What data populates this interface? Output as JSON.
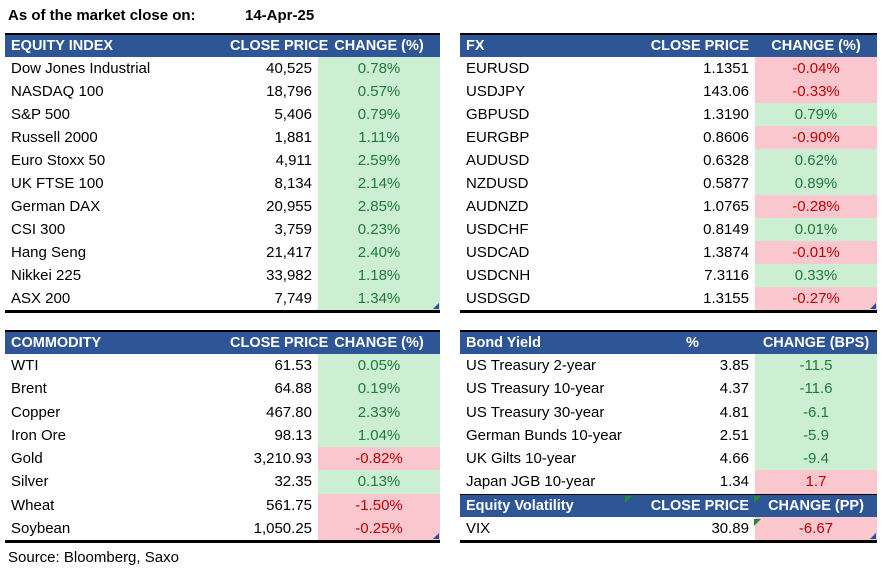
{
  "meta": {
    "as_of_label": "As of the market close on:",
    "date": "14-Apr-25",
    "source": "Source: Bloomberg, Saxo"
  },
  "colors": {
    "header_bg": "#2E5596",
    "header_text": "#FFFFFF",
    "positive_bg": "#CCEED2",
    "positive_text": "#1E7B3A",
    "negative_bg": "#FBC7CE",
    "negative_text": "#C00000",
    "corner_marker_blue": "#2A4B9B",
    "error_indicator_green": "#1E8E3E"
  },
  "tables": {
    "equity": {
      "title": "EQUITY INDEX",
      "col_price": "CLOSE PRICE",
      "col_change": "CHANGE (%)",
      "rows": [
        {
          "name": "Dow Jones Industrial",
          "price": "40,525",
          "change": "0.78%",
          "tone": "pos"
        },
        {
          "name": "NASDAQ 100",
          "price": "18,796",
          "change": "0.57%",
          "tone": "pos"
        },
        {
          "name": "S&P 500",
          "price": "5,406",
          "change": "0.79%",
          "tone": "pos"
        },
        {
          "name": "Russell 2000",
          "price": "1,881",
          "change": "1.11%",
          "tone": "pos"
        },
        {
          "name": "Euro Stoxx 50",
          "price": "4,911",
          "change": "2.59%",
          "tone": "pos"
        },
        {
          "name": "UK FTSE 100",
          "price": "8,134",
          "change": "2.14%",
          "tone": "pos"
        },
        {
          "name": "German DAX",
          "price": "20,955",
          "change": "2.85%",
          "tone": "pos"
        },
        {
          "name": "CSI 300",
          "price": "3,759",
          "change": "0.23%",
          "tone": "pos"
        },
        {
          "name": "Hang Seng",
          "price": "21,417",
          "change": "2.40%",
          "tone": "pos"
        },
        {
          "name": "Nikkei 225",
          "price": "33,982",
          "change": "1.18%",
          "tone": "pos"
        },
        {
          "name": "ASX 200",
          "price": "7,749",
          "change": "1.34%",
          "tone": "pos"
        }
      ]
    },
    "fx": {
      "title": "FX",
      "col_price": "CLOSE PRICE",
      "col_change": "CHANGE (%)",
      "rows": [
        {
          "name": "EURUSD",
          "price": "1.1351",
          "change": "-0.04%",
          "tone": "neg"
        },
        {
          "name": "USDJPY",
          "price": "143.06",
          "change": "-0.33%",
          "tone": "neg"
        },
        {
          "name": "GBPUSD",
          "price": "1.3190",
          "change": "0.79%",
          "tone": "pos"
        },
        {
          "name": "EURGBP",
          "price": "0.8606",
          "change": "-0.90%",
          "tone": "neg"
        },
        {
          "name": "AUDUSD",
          "price": "0.6328",
          "change": "0.62%",
          "tone": "pos"
        },
        {
          "name": "NZDUSD",
          "price": "0.5877",
          "change": "0.89%",
          "tone": "pos"
        },
        {
          "name": "AUDNZD",
          "price": "1.0765",
          "change": "-0.28%",
          "tone": "neg"
        },
        {
          "name": "USDCHF",
          "price": "0.8149",
          "change": "0.01%",
          "tone": "pos"
        },
        {
          "name": "USDCAD",
          "price": "1.3874",
          "change": "-0.01%",
          "tone": "neg"
        },
        {
          "name": "USDCNH",
          "price": "7.3116",
          "change": "0.33%",
          "tone": "pos"
        },
        {
          "name": "USDSGD",
          "price": "1.3155",
          "change": "-0.27%",
          "tone": "neg"
        }
      ]
    },
    "commodity": {
      "title": "COMMODITY",
      "col_price": "CLOSE PRICE",
      "col_change": "CHANGE (%)",
      "rows": [
        {
          "name": "WTI",
          "price": "61.53",
          "change": "0.05%",
          "tone": "pos"
        },
        {
          "name": "Brent",
          "price": "64.88",
          "change": "0.19%",
          "tone": "pos"
        },
        {
          "name": "Copper",
          "price": "467.80",
          "change": "2.33%",
          "tone": "pos"
        },
        {
          "name": "Iron Ore",
          "price": "98.13",
          "change": "1.04%",
          "tone": "pos"
        },
        {
          "name": "Gold",
          "price": "3,210.93",
          "change": "-0.82%",
          "tone": "neg"
        },
        {
          "name": "Silver",
          "price": "32.35",
          "change": "0.13%",
          "tone": "pos"
        },
        {
          "name": "Wheat",
          "price": "561.75",
          "change": "-1.50%",
          "tone": "neg"
        },
        {
          "name": "Soybean",
          "price": "1,050.25",
          "change": "-0.25%",
          "tone": "neg"
        }
      ]
    },
    "bond": {
      "title": "Bond Yield",
      "col_price": "%",
      "col_change": "CHANGE (BPS)",
      "rows": [
        {
          "name": "US Treasury 2-year",
          "price": "3.85",
          "change": "-11.5",
          "tone": "pos"
        },
        {
          "name": "US Treasury 10-year",
          "price": "4.37",
          "change": "-11.6",
          "tone": "pos"
        },
        {
          "name": "US Treasury 30-year",
          "price": "4.81",
          "change": "-6.1",
          "tone": "pos"
        },
        {
          "name": "German Bunds 10-year",
          "price": "2.51",
          "change": "-5.9",
          "tone": "pos"
        },
        {
          "name": "UK Gilts 10-year",
          "price": "4.66",
          "change": "-9.4",
          "tone": "pos"
        },
        {
          "name": "Japan JGB 10-year",
          "price": "1.34",
          "change": "1.7",
          "tone": "neg"
        }
      ]
    },
    "volatility": {
      "title": "Equity Volatility",
      "col_price": "CLOSE PRICE",
      "col_change": "CHANGE (PP)",
      "rows": [
        {
          "name": "VIX",
          "price": "30.89",
          "change": "-6.67",
          "tone": "neg"
        }
      ]
    }
  }
}
